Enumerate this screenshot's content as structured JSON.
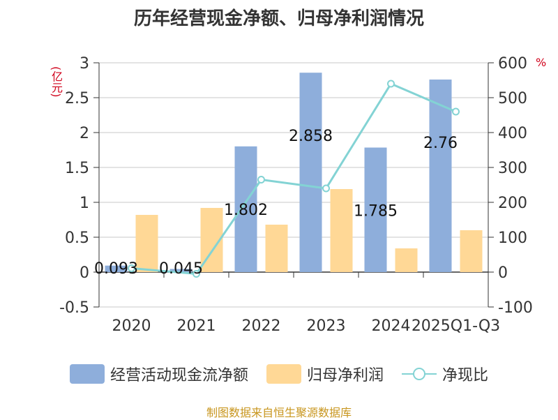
{
  "title": "历年经营现金净额、归母净利润情况",
  "source": "制图数据来自恒生聚源数据库",
  "chart_data": {
    "type": "bar",
    "categories": [
      "2020",
      "2021",
      "2022",
      "2023",
      "2024",
      "2025Q1-Q3"
    ],
    "series": [
      {
        "name": "经营活动现金流净额",
        "axis": "left",
        "type": "bar",
        "color": "#8eaedb",
        "values": [
          0.093,
          0.045,
          1.802,
          2.858,
          1.785,
          2.76
        ],
        "labels": [
          "0.093",
          "0.045",
          "1.802",
          "2.858",
          "1.785",
          "2.76"
        ]
      },
      {
        "name": "归母净利润",
        "axis": "left",
        "type": "bar",
        "color": "#ffd896",
        "values": [
          0.82,
          0.92,
          0.68,
          1.19,
          0.34,
          0.6
        ]
      },
      {
        "name": "净现比",
        "axis": "right",
        "type": "line",
        "color": "#83d3d4",
        "values": [
          11,
          -5,
          265,
          240,
          540,
          460
        ]
      }
    ],
    "y_left": {
      "label": "(亿元)",
      "min": -0.5,
      "max": 3,
      "ticks": [
        -0.5,
        0,
        0.5,
        1,
        1.5,
        2,
        2.5,
        3
      ],
      "tick_labels": [
        "-0.5",
        "0",
        "0.5",
        "1",
        "1.5",
        "2",
        "2.5",
        "3"
      ]
    },
    "y_right": {
      "label": "%",
      "min": -100,
      "max": 600,
      "ticks": [
        -100,
        0,
        100,
        200,
        300,
        400,
        500,
        600
      ],
      "tick_labels": [
        "-100",
        "0",
        "100",
        "200",
        "300",
        "400",
        "500",
        "600"
      ]
    },
    "grid": true,
    "legend_position": "bottom"
  }
}
